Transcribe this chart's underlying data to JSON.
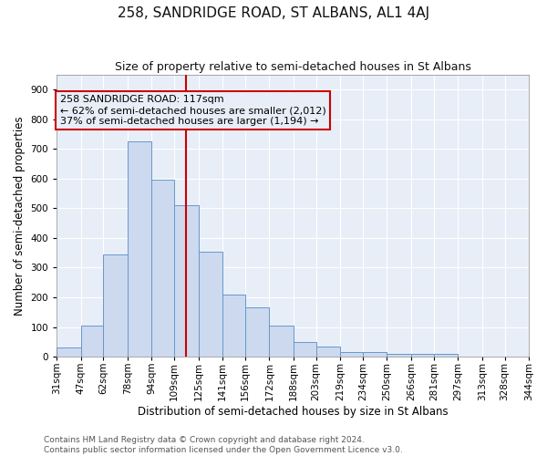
{
  "title": "258, SANDRIDGE ROAD, ST ALBANS, AL1 4AJ",
  "subtitle": "Size of property relative to semi-detached houses in St Albans",
  "xlabel": "Distribution of semi-detached houses by size in St Albans",
  "ylabel": "Number of semi-detached properties",
  "bin_labels": [
    "31sqm",
    "47sqm",
    "62sqm",
    "78sqm",
    "94sqm",
    "109sqm",
    "125sqm",
    "141sqm",
    "156sqm",
    "172sqm",
    "188sqm",
    "203sqm",
    "219sqm",
    "234sqm",
    "250sqm",
    "266sqm",
    "281sqm",
    "297sqm",
    "313sqm",
    "328sqm",
    "344sqm"
  ],
  "bin_edges": [
    31,
    47,
    62,
    78,
    94,
    109,
    125,
    141,
    156,
    172,
    188,
    203,
    219,
    234,
    250,
    266,
    281,
    297,
    313,
    328,
    344
  ],
  "bar_heights": [
    30,
    105,
    345,
    725,
    595,
    510,
    355,
    210,
    165,
    105,
    50,
    35,
    15,
    15,
    10,
    10,
    10,
    0,
    0,
    0
  ],
  "bar_facecolor": "#ccd9ee",
  "bar_edgecolor": "#6699cc",
  "property_value": 117,
  "vline_color": "#cc0000",
  "annotation_title": "258 SANDRIDGE ROAD: 117sqm",
  "annotation_line1": "← 62% of semi-detached houses are smaller (2,012)",
  "annotation_line2": "37% of semi-detached houses are larger (1,194) →",
  "annotation_box_edgecolor": "#cc0000",
  "ylim": [
    0,
    950
  ],
  "yticks": [
    0,
    100,
    200,
    300,
    400,
    500,
    600,
    700,
    800,
    900
  ],
  "footer1": "Contains HM Land Registry data © Crown copyright and database right 2024.",
  "footer2": "Contains public sector information licensed under the Open Government Licence v3.0.",
  "background_color": "#ffffff",
  "plot_bg_color": "#e8eef8",
  "grid_color": "#ffffff",
  "title_fontsize": 11,
  "subtitle_fontsize": 9,
  "axis_label_fontsize": 8.5,
  "tick_fontsize": 7.5,
  "annotation_fontsize": 8,
  "footer_fontsize": 6.5
}
